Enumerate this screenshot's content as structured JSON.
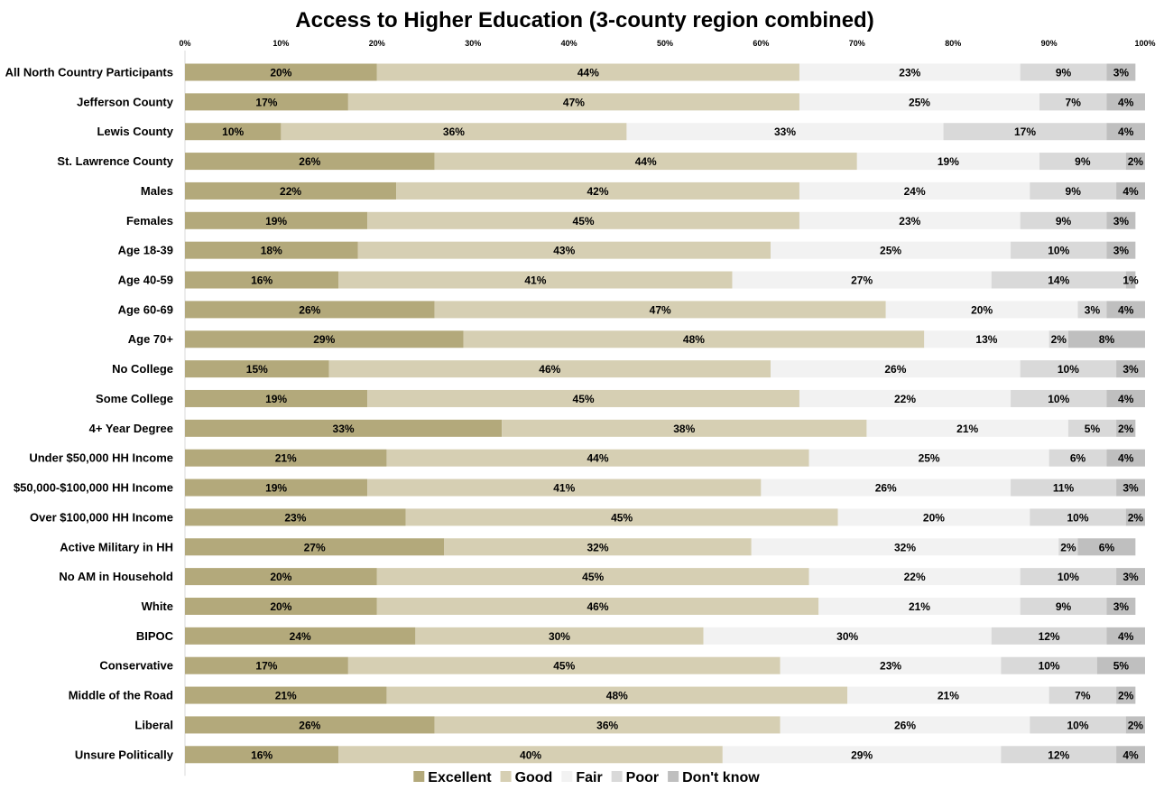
{
  "chart_data": {
    "type": "bar",
    "orientation": "horizontal",
    "stacked": true,
    "percent_stacked": true,
    "title": "Access to Higher Education (3-county region combined)",
    "xlabel": "",
    "ylabel": "",
    "xlim": [
      0,
      100
    ],
    "x_ticks": [
      "0%",
      "10%",
      "20%",
      "30%",
      "40%",
      "50%",
      "60%",
      "70%",
      "80%",
      "90%",
      "100%"
    ],
    "grid": false,
    "legend_position": "bottom",
    "categories": [
      "All North Country Participants",
      "Jefferson County",
      "Lewis County",
      "St. Lawrence County",
      "Males",
      "Females",
      "Age 18-39",
      "Age 40-59",
      "Age 60-69",
      "Age 70+",
      "No College",
      "Some College",
      "4+ Year Degree",
      "Under $50,000 HH Income",
      "$50,000-$100,000 HH Income",
      "Over $100,000 HH Income",
      "Active Military in HH",
      "No AM in Household",
      "White",
      "BIPOC",
      "Conservative",
      "Middle of the Road",
      "Liberal",
      "Unsure Politically"
    ],
    "series": [
      {
        "name": "Excellent",
        "color": "#b3a97b",
        "values": [
          20,
          17,
          10,
          26,
          22,
          19,
          18,
          16,
          26,
          29,
          15,
          19,
          33,
          21,
          19,
          23,
          27,
          20,
          20,
          24,
          17,
          21,
          26,
          16
        ],
        "labels": [
          "20%",
          "17%",
          "10%",
          "26%",
          "22%",
          "19%",
          "18%",
          "16%",
          "26%",
          "29%",
          "15%",
          "19%",
          "33%",
          "21%",
          "19%",
          "23%",
          "27%",
          "20%",
          "20%",
          "24%",
          "17%",
          "21%",
          "26%",
          "16%"
        ]
      },
      {
        "name": "Good",
        "color": "#d6cfb3",
        "values": [
          44,
          47,
          36,
          44,
          42,
          45,
          43,
          41,
          47,
          48,
          46,
          45,
          38,
          44,
          41,
          45,
          32,
          45,
          46,
          30,
          45,
          48,
          36,
          40
        ],
        "labels": [
          "44%",
          "47%",
          "36%",
          "44%",
          "42%",
          "45%",
          "43%",
          "41%",
          "47%",
          "48%",
          "46%",
          "45%",
          "38%",
          "44%",
          "41%",
          "45%",
          "32%",
          "45%",
          "46%",
          "30%",
          "45%",
          "48%",
          "36%",
          "40%"
        ]
      },
      {
        "name": "Fair",
        "color": "#f2f2f2",
        "values": [
          23,
          25,
          33,
          19,
          24,
          23,
          25,
          27,
          20,
          13,
          26,
          22,
          21,
          25,
          26,
          20,
          32,
          22,
          21,
          30,
          23,
          21,
          26,
          29
        ],
        "labels": [
          "23%",
          "25%",
          "33%",
          "19%",
          "24%",
          "23%",
          "25%",
          "27%",
          "20%",
          "13%",
          "26%",
          "22%",
          "21%",
          "25%",
          "26%",
          "20%",
          "32%",
          "22%",
          "21%",
          "30%",
          "23%",
          "21%",
          "26%",
          "29%"
        ]
      },
      {
        "name": "Poor",
        "color": "#d9d9d9",
        "values": [
          9,
          7,
          17,
          9,
          9,
          9,
          10,
          14,
          3,
          2,
          10,
          10,
          5,
          6,
          11,
          10,
          2,
          10,
          9,
          12,
          10,
          7,
          10,
          12
        ],
        "labels": [
          "9%",
          "7%",
          "17%",
          "9%",
          "9%",
          "9%",
          "10%",
          "14%",
          "3%",
          "2%",
          "10%",
          "10%",
          "5%",
          "6%",
          "11%",
          "10%",
          "2%",
          "10%",
          "9%",
          "12%",
          "10%",
          "7%",
          "10%",
          "12%"
        ]
      },
      {
        "name": "Don't know",
        "color": "#bfbfbf",
        "values": [
          3,
          4,
          4,
          2,
          4,
          3,
          3,
          1,
          4,
          8,
          3,
          4,
          2,
          4,
          3,
          2,
          6,
          3,
          3,
          4,
          5,
          2,
          2,
          4
        ],
        "labels": [
          "3%",
          "4%",
          "4%",
          "2%",
          "4%",
          "3%",
          "3%",
          "1%",
          "4%",
          "8%",
          "3%",
          "4%",
          "2%",
          "4%",
          "3%",
          "2%",
          "6%",
          "3%",
          "3%",
          "4%",
          "5%",
          "2%",
          "2%",
          "4%"
        ]
      }
    ]
  }
}
